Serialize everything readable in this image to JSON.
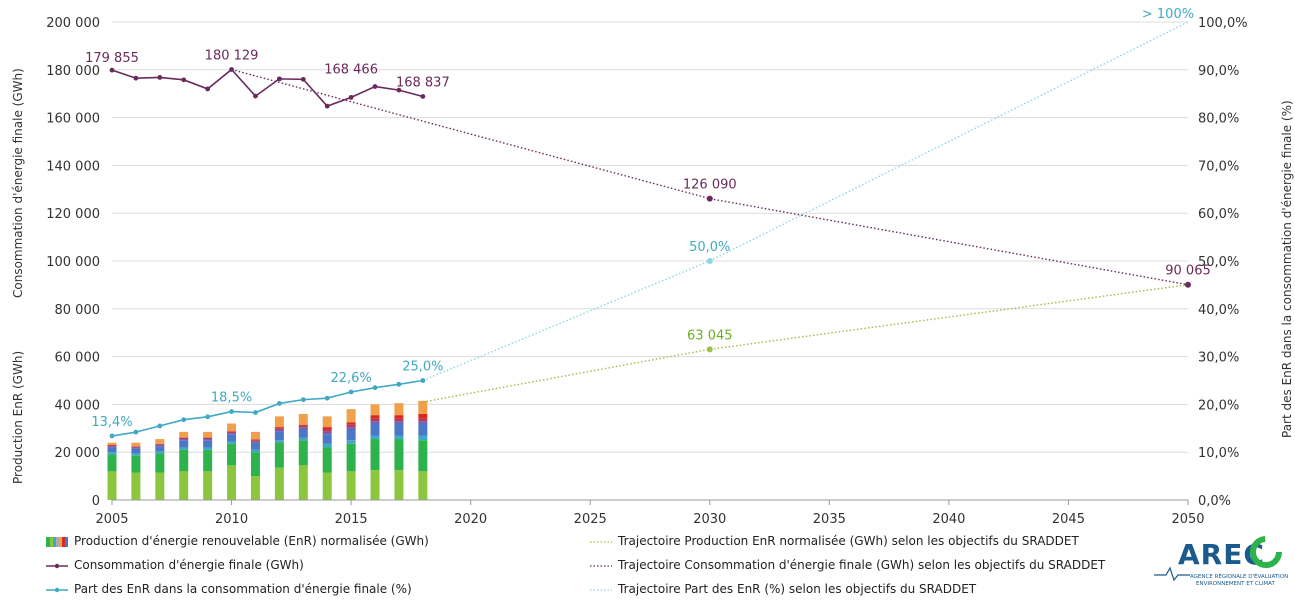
{
  "chart_data": {
    "type": "combo",
    "x_axis": {
      "ticks": [
        2005,
        2010,
        2015,
        2020,
        2025,
        2030,
        2035,
        2040,
        2045,
        2050
      ],
      "range": [
        2005,
        2050
      ]
    },
    "y_left": {
      "range": [
        0,
        200000
      ],
      "tick_labels": [
        "0",
        "20 000",
        "40 000",
        "60 000",
        "80 000",
        "100 000",
        "120 000",
        "140 000",
        "160 000",
        "180 000",
        "200 000"
      ],
      "label_top": "Consommation d'énergie finale (GWh)",
      "label_bottom": "Production EnR (GWh)"
    },
    "y_right": {
      "range": [
        0,
        100
      ],
      "tick_labels": [
        "0,0%",
        "10,0%",
        "20,0%",
        "30,0%",
        "40,0%",
        "50,0%",
        "60,0%",
        "70,0%",
        "80,0%",
        "90,0%",
        "100,0%"
      ],
      "label": "Part des EnR dans la consommation d'énergie finale (%)"
    },
    "years": [
      2005,
      2006,
      2007,
      2008,
      2009,
      2010,
      2011,
      2012,
      2013,
      2014,
      2015,
      2016,
      2017,
      2018
    ],
    "enr_production_stacked": {
      "colors": [
        "#8cc63f",
        "#2eb24b",
        "#3fa9c4",
        "#4a78c7",
        "#7b5fa8",
        "#b33a6d",
        "#d9281e",
        "#f0a04b"
      ],
      "segments": [
        [
          12000,
          7000,
          1000,
          2000,
          500,
          300,
          200,
          1000
        ],
        [
          11500,
          7000,
          1000,
          2000,
          500,
          300,
          200,
          1500
        ],
        [
          11500,
          8000,
          1000,
          2000,
          500,
          300,
          200,
          2000
        ],
        [
          12000,
          9000,
          1000,
          3000,
          500,
          500,
          200,
          2300
        ],
        [
          12000,
          9000,
          1000,
          3000,
          500,
          500,
          200,
          2300
        ],
        [
          14500,
          9000,
          1000,
          3000,
          500,
          500,
          300,
          3200
        ],
        [
          10000,
          10000,
          1000,
          3000,
          500,
          500,
          300,
          3200
        ],
        [
          13500,
          10500,
          1000,
          3500,
          1000,
          500,
          500,
          4500
        ],
        [
          14500,
          10500,
          1000,
          3500,
          1000,
          500,
          500,
          4500
        ],
        [
          11500,
          10500,
          1500,
          4000,
          1000,
          1000,
          1000,
          4500
        ],
        [
          12000,
          11500,
          1500,
          4500,
          1000,
          1000,
          1000,
          5500
        ],
        [
          12500,
          13000,
          1500,
          5000,
          1000,
          1000,
          1500,
          4500
        ],
        [
          12500,
          13000,
          1500,
          5000,
          1000,
          1000,
          1500,
          5000
        ],
        [
          12000,
          13000,
          2000,
          5000,
          1000,
          1000,
          2000,
          5500
        ]
      ]
    },
    "consumption": {
      "name": "Consommation d'énergie finale (GWh)",
      "color": "#6b2a5c",
      "values": [
        179855,
        176500,
        176800,
        175800,
        172000,
        180129,
        169000,
        176200,
        176000,
        164800,
        168466,
        173000,
        171500,
        168837
      ]
    },
    "enr_share": {
      "name": "Part des EnR dans la consommation d'énergie finale (%)",
      "color": "#3fa9c4",
      "values": [
        13.4,
        14.2,
        15.5,
        16.8,
        17.4,
        18.5,
        18.3,
        20.2,
        21.0,
        21.3,
        22.6,
        23.5,
        24.2,
        25.0
      ]
    },
    "traj_production": {
      "name": "Trajectoire Production EnR normalisée (GWh) selon les objectifs du SRADDET",
      "color": "#9abf4a",
      "x": [
        2018,
        2030,
        2050
      ],
      "y": [
        41000,
        63045,
        90065
      ]
    },
    "traj_consumption": {
      "name": "Trajectoire Consommation d'énergie finale (GWh) selon les objectifs du SRADDET",
      "color": "#6b2a5c",
      "x": [
        2010,
        2030,
        2050
      ],
      "y": [
        180129,
        126090,
        90065
      ]
    },
    "traj_share": {
      "name": "Trajectoire Part des EnR (%) selon les objectifs du SRADDET",
      "color": "#8fd3e6",
      "x": [
        2018,
        2030,
        2050
      ],
      "y": [
        25.0,
        50.0,
        100.0
      ]
    },
    "annotations": [
      {
        "text": "179 855",
        "x": 2005,
        "y": 179855,
        "axis": "left",
        "color": "#6b2a5c",
        "dx": 0,
        "dy": -8
      },
      {
        "text": "180 129",
        "x": 2010,
        "y": 180129,
        "axis": "left",
        "color": "#6b2a5c",
        "dx": 0,
        "dy": -10
      },
      {
        "text": "168 466",
        "x": 2015,
        "y": 168466,
        "axis": "left",
        "color": "#6b2a5c",
        "dx": 0,
        "dy": -24
      },
      {
        "text": "168 837",
        "x": 2018,
        "y": 168837,
        "axis": "left",
        "color": "#6b2a5c",
        "dx": 0,
        "dy": -10
      },
      {
        "text": "126 090",
        "x": 2030,
        "y": 126090,
        "axis": "left",
        "color": "#6b2a5c",
        "dx": 0,
        "dy": -10
      },
      {
        "text": "90 065",
        "x": 2050,
        "y": 90065,
        "axis": "left",
        "color": "#6b2a5c",
        "dx": 0,
        "dy": -10
      },
      {
        "text": "63 045",
        "x": 2030,
        "y": 63045,
        "axis": "left",
        "color": "#6ab023",
        "dx": 0,
        "dy": -10
      },
      {
        "text": "13,4%",
        "x": 2005,
        "y": 13.4,
        "axis": "right",
        "color": "#3fa9c4",
        "dx": 0,
        "dy": -10
      },
      {
        "text": "18,5%",
        "x": 2010,
        "y": 18.5,
        "axis": "right",
        "color": "#3fa9c4",
        "dx": 0,
        "dy": -10
      },
      {
        "text": "22,6%",
        "x": 2015,
        "y": 22.6,
        "axis": "right",
        "color": "#3fa9c4",
        "dx": 0,
        "dy": -10
      },
      {
        "text": "25,0%",
        "x": 2018,
        "y": 25.0,
        "axis": "right",
        "color": "#3fa9c4",
        "dx": 0,
        "dy": -10
      },
      {
        "text": "50,0%",
        "x": 2030,
        "y": 50.0,
        "axis": "right",
        "color": "#3fa9c4",
        "dx": 0,
        "dy": -10
      },
      {
        "text": "> 100%",
        "x": 2050,
        "y": 100,
        "axis": "right",
        "color": "#3fa9c4",
        "dx": -20,
        "dy": -4
      }
    ],
    "grid": true
  },
  "legend": {
    "production": "Production d'énergie renouvelable (EnR) normalisée (GWh)",
    "consumption": "Consommation d'énergie finale (GWh)",
    "share": "Part des EnR dans la consommation d'énergie finale (%)",
    "traj_production": "Trajectoire Production EnR normalisée (GWh) selon les objectifs du SRADDET",
    "traj_consumption": "Trajectoire Consommation d'énergie finale (GWh) selon les objectifs du SRADDET",
    "traj_share": "Trajectoire Part des EnR (%) selon les objectifs du SRADDET"
  },
  "logo": {
    "text": "AREC",
    "subtitle_line1": "AGENCE RÉGIONALE D'ÉVALUATION",
    "subtitle_line2": "ENVIRONNEMENT ET CLIMAT",
    "color": "#1a5a8c",
    "accent": "#2eb24b"
  }
}
